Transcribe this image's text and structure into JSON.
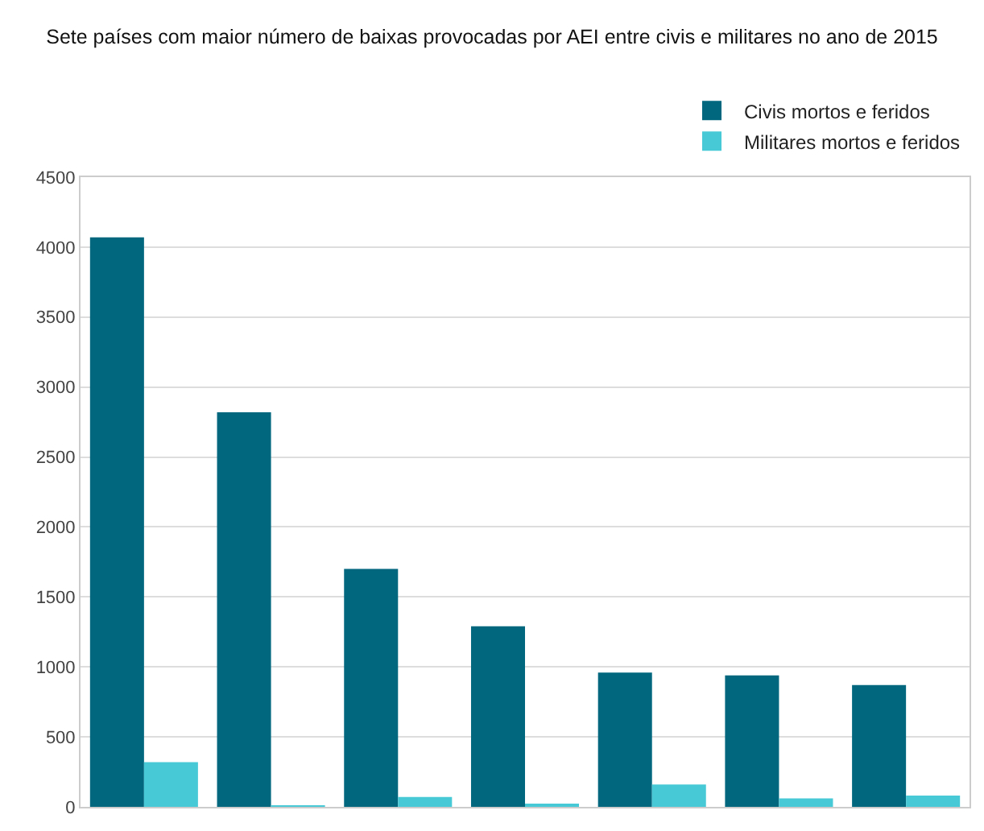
{
  "chart_data": {
    "type": "bar",
    "title": "Sete países com maior número de baixas provocadas por AEI entre civis e militares no ano de 2015",
    "categories": [
      null,
      null,
      null,
      null,
      null,
      null,
      null
    ],
    "series": [
      {
        "name": "Civis mortos e feridos",
        "color": "#00677f",
        "values": [
          4070,
          2820,
          1700,
          1290,
          960,
          940,
          870
        ]
      },
      {
        "name": "Militares mortos e feridos",
        "color": "#47c9d6",
        "values": [
          320,
          10,
          70,
          20,
          160,
          60,
          80
        ]
      }
    ],
    "ylim": [
      0,
      4500
    ],
    "yticks": [
      0,
      500,
      1000,
      1500,
      2000,
      2500,
      3000,
      3500,
      4000,
      4500
    ],
    "grid": "y",
    "legend": "top right"
  }
}
